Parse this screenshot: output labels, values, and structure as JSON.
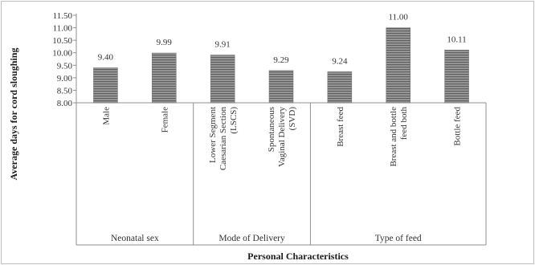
{
  "chart_data": {
    "type": "bar",
    "xlabel": "Personal Characteristics",
    "ylabel": "Average days for cord sloughing",
    "ylim": [
      8.0,
      11.5
    ],
    "yticks": [
      "8.00",
      "8.50",
      "9.00",
      "9.50",
      "10.00",
      "10.50",
      "11.00",
      "11.50"
    ],
    "grid": false,
    "bar_color": "#8c8c8c",
    "categories": [
      "Male",
      "Female",
      "Lower Segment Caesarian Section (LSCS)",
      "Spontaneous Vaginal Delivery (SVD)",
      "Breast feed",
      "Breast and bottle feed both",
      "Bottle feed"
    ],
    "category_lines": [
      [
        "Male"
      ],
      [
        "Female"
      ],
      [
        "Lower Segment",
        "Caesarian Section",
        "(LSCS)"
      ],
      [
        "Spontaneous",
        "Vaginal Delivery",
        "(SVD)"
      ],
      [
        "Breast feed"
      ],
      [
        "Breast and bottle",
        "feed both"
      ],
      [
        "Bottle feed"
      ]
    ],
    "values": [
      9.4,
      9.99,
      9.91,
      9.29,
      9.24,
      11.0,
      10.11
    ],
    "value_labels": [
      "9.40",
      "9.99",
      "9.91",
      "9.29",
      "9.24",
      "11.00",
      "10.11"
    ],
    "groups": [
      {
        "label": "Neonatal sex",
        "count": 2
      },
      {
        "label": "Mode of Delivery",
        "count": 2
      },
      {
        "label": "Type of feed",
        "count": 3
      }
    ]
  }
}
